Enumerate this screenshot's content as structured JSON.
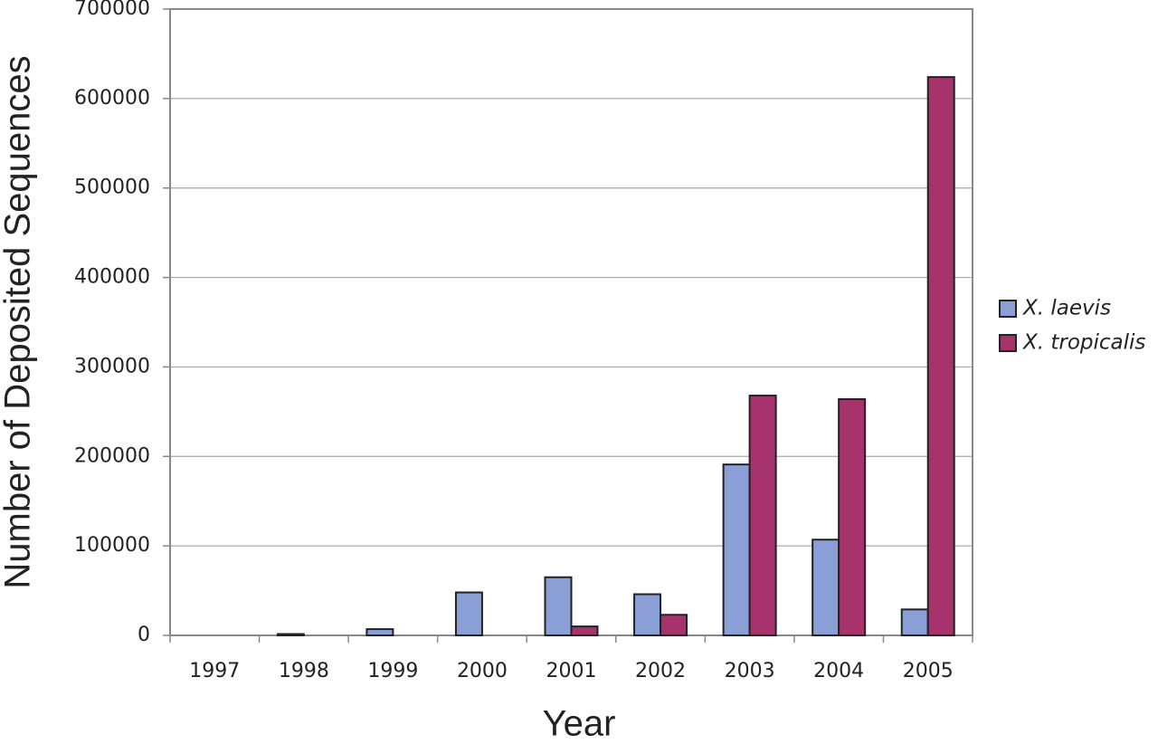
{
  "chart_data": {
    "type": "bar",
    "x_label": "Year",
    "y_label": "Number of Deposited Sequences",
    "categories": [
      "1997",
      "1998",
      "1999",
      "2000",
      "2001",
      "2002",
      "2003",
      "2004",
      "2005"
    ],
    "series": [
      {
        "name": "X. laevis",
        "color": "#8a9fd6",
        "values": [
          0,
          1500,
          7000,
          48000,
          65000,
          46000,
          191000,
          107000,
          29000
        ]
      },
      {
        "name": "X. tropicalis",
        "color": "#a6336b",
        "values": [
          0,
          0,
          0,
          0,
          10000,
          23000,
          268000,
          264000,
          624000
        ]
      }
    ],
    "ylim": [
      0,
      700000
    ],
    "yticks": [
      0,
      100000,
      200000,
      300000,
      400000,
      500000,
      600000,
      700000
    ],
    "grid": true,
    "legend": "right"
  }
}
